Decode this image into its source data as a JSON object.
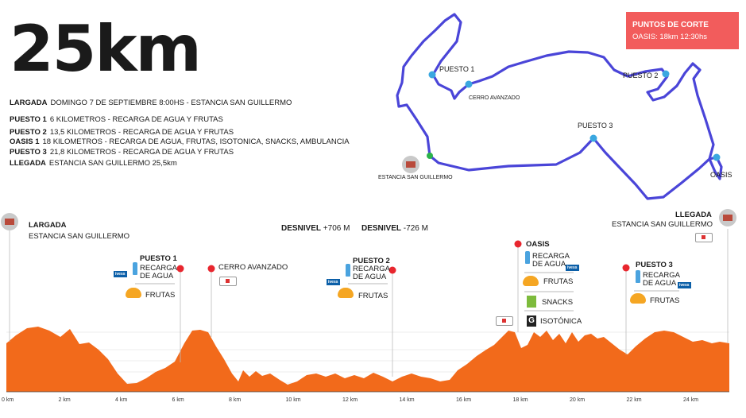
{
  "title": "25km",
  "info": {
    "rows": [
      {
        "label": "LARGADA",
        "text": "DOMINGO 7 DE SEPTIEMBRE 8:00HS - ESTANCIA SAN GUILLERMO"
      },
      {
        "label": "PUESTO 1",
        "text": "6 KILOMETROS - RECARGA DE AGUA Y FRUTAS"
      },
      {
        "label": "PUESTO 2",
        "text": "13,5 KILOMETROS - RECARGA DE AGUA Y FRUTAS"
      },
      {
        "label": "OASIS 1",
        "text": "18 KILOMETROS - RECARGA DE AGUA, FRUTAS, ISOTONICA, SNACKS, AMBULANCIA"
      },
      {
        "label": "PUESTO 3",
        "text": "21,8 KILOMETROS - RECARGA DE AGUA Y FRUTAS"
      },
      {
        "label": "LLEGADA",
        "text": "ESTANCIA SAN GUILLERMO 25,5km"
      }
    ]
  },
  "cut_points": {
    "heading": "PUNTOS DE CORTE",
    "text": "OASIS: 18km 12:30hs"
  },
  "map": {
    "puesto1": "PUESTO 1",
    "cerro": "CERRO AVANZADO",
    "puesto2": "PUESTO 2",
    "puesto3": "PUESTO 3",
    "oasis": "OASIS",
    "estancia": "ESTANCIA SAN GUILLERMO",
    "route_color": "#4a45d8",
    "marker_color": "#3aa7e0"
  },
  "profile": {
    "fill_color": "#f26a1b",
    "marker_color": "#e8262e",
    "start": {
      "label": "LARGADA",
      "place": "ESTANCIA SAN GUILLERMO"
    },
    "finish": {
      "label": "LLEGADA",
      "place": "ESTANCIA SAN GUILLERMO"
    },
    "desnivel_pos": {
      "label": "DESNIVEL",
      "value": "+706 M"
    },
    "desnivel_neg": {
      "label": "DESNIVEL",
      "value": "-726 M"
    },
    "stations": {
      "puesto1": {
        "name": "PUESTO 1",
        "water": "RECARGA\nDE AGUA",
        "fruit": "FRUTAS"
      },
      "cerro": {
        "name": "CERRO AVANZADO"
      },
      "puesto2": {
        "name": "PUESTO 2",
        "water": "RECARGA\nDE AGUA",
        "fruit": "FRUTAS"
      },
      "oasis": {
        "name": "OASIS",
        "water": "RECARGA\nDE AGUA",
        "fruit": "FRUTAS",
        "snacks": "SNACKS",
        "iso": "ISOTÓNICA"
      },
      "puesto3": {
        "name": "PUESTO 3",
        "water": "RECARGA\nDE AGUA",
        "fruit": "FRUTAS"
      }
    },
    "brand": "ivess",
    "x_ticks": [
      "0 km",
      "2 km",
      "4 km",
      "6 km",
      "8 km",
      "10 km",
      "12 km",
      "14 km",
      "16 km",
      "18 km",
      "20 km",
      "22 km",
      "24 km"
    ]
  }
}
